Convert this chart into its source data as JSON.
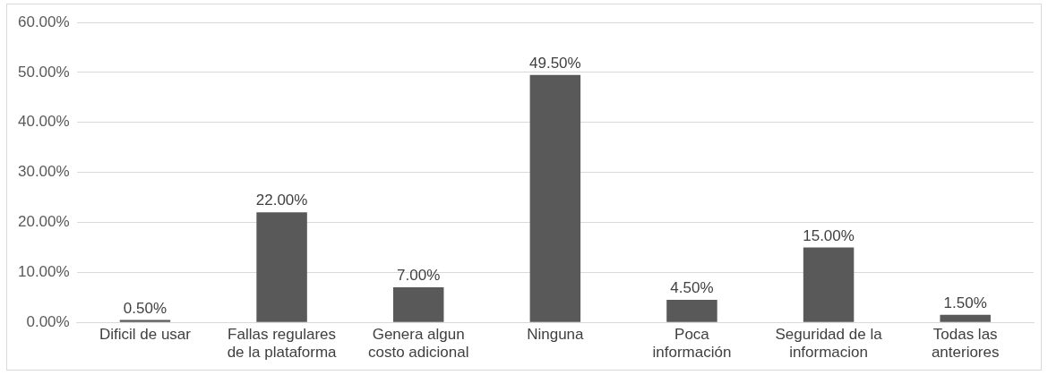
{
  "chart_data": {
    "type": "bar",
    "categories": [
      "Dificil de usar",
      "Fallas regulares de la plataforma",
      "Genera algun costo adicional",
      "Ninguna",
      "Poca información",
      "Seguridad de la informacion",
      "Todas las anteriores"
    ],
    "values": [
      0.5,
      22,
      7,
      49.5,
      4.5,
      15,
      1.5
    ],
    "color": "#595959",
    "ylim": [
      0,
      60
    ],
    "yticks": [
      {
        "value": 0,
        "label": "0.00%"
      },
      {
        "value": 10,
        "label": "10.00%"
      },
      {
        "value": 20,
        "label": "20.00%"
      },
      {
        "value": 30,
        "label": "30.00%"
      },
      {
        "value": 40,
        "label": "40.00%"
      },
      {
        "value": 50,
        "label": "50.00%"
      },
      {
        "value": 60,
        "label": "60.00%"
      }
    ],
    "value_labels": [
      "0.50%",
      "22.00%",
      "7.00%",
      "49.50%",
      "4.50%",
      "15.00%",
      "1.50%"
    ],
    "grid": "y",
    "legend": false
  }
}
